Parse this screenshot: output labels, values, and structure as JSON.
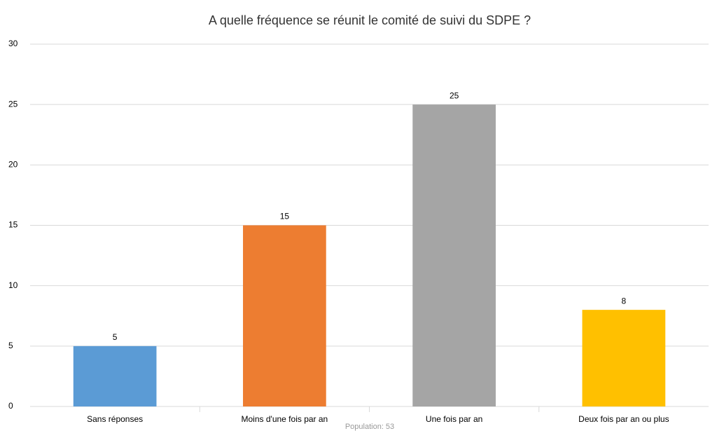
{
  "chart_data": {
    "type": "bar",
    "title": "A quelle fréquence se réunit le comité de suivi du SDPE ?",
    "categories": [
      "Sans réponses",
      "Moins d'une fois par an",
      "Une fois par an",
      "Deux fois par an ou plus"
    ],
    "values": [
      5,
      15,
      25,
      8
    ],
    "colors": [
      "#5b9bd5",
      "#ed7d31",
      "#a5a5a5",
      "#ffc000"
    ],
    "ylim": [
      0,
      30
    ],
    "yticks": [
      0,
      5,
      10,
      15,
      20,
      25,
      30
    ],
    "grid": true,
    "annotation": "Population: 53"
  }
}
